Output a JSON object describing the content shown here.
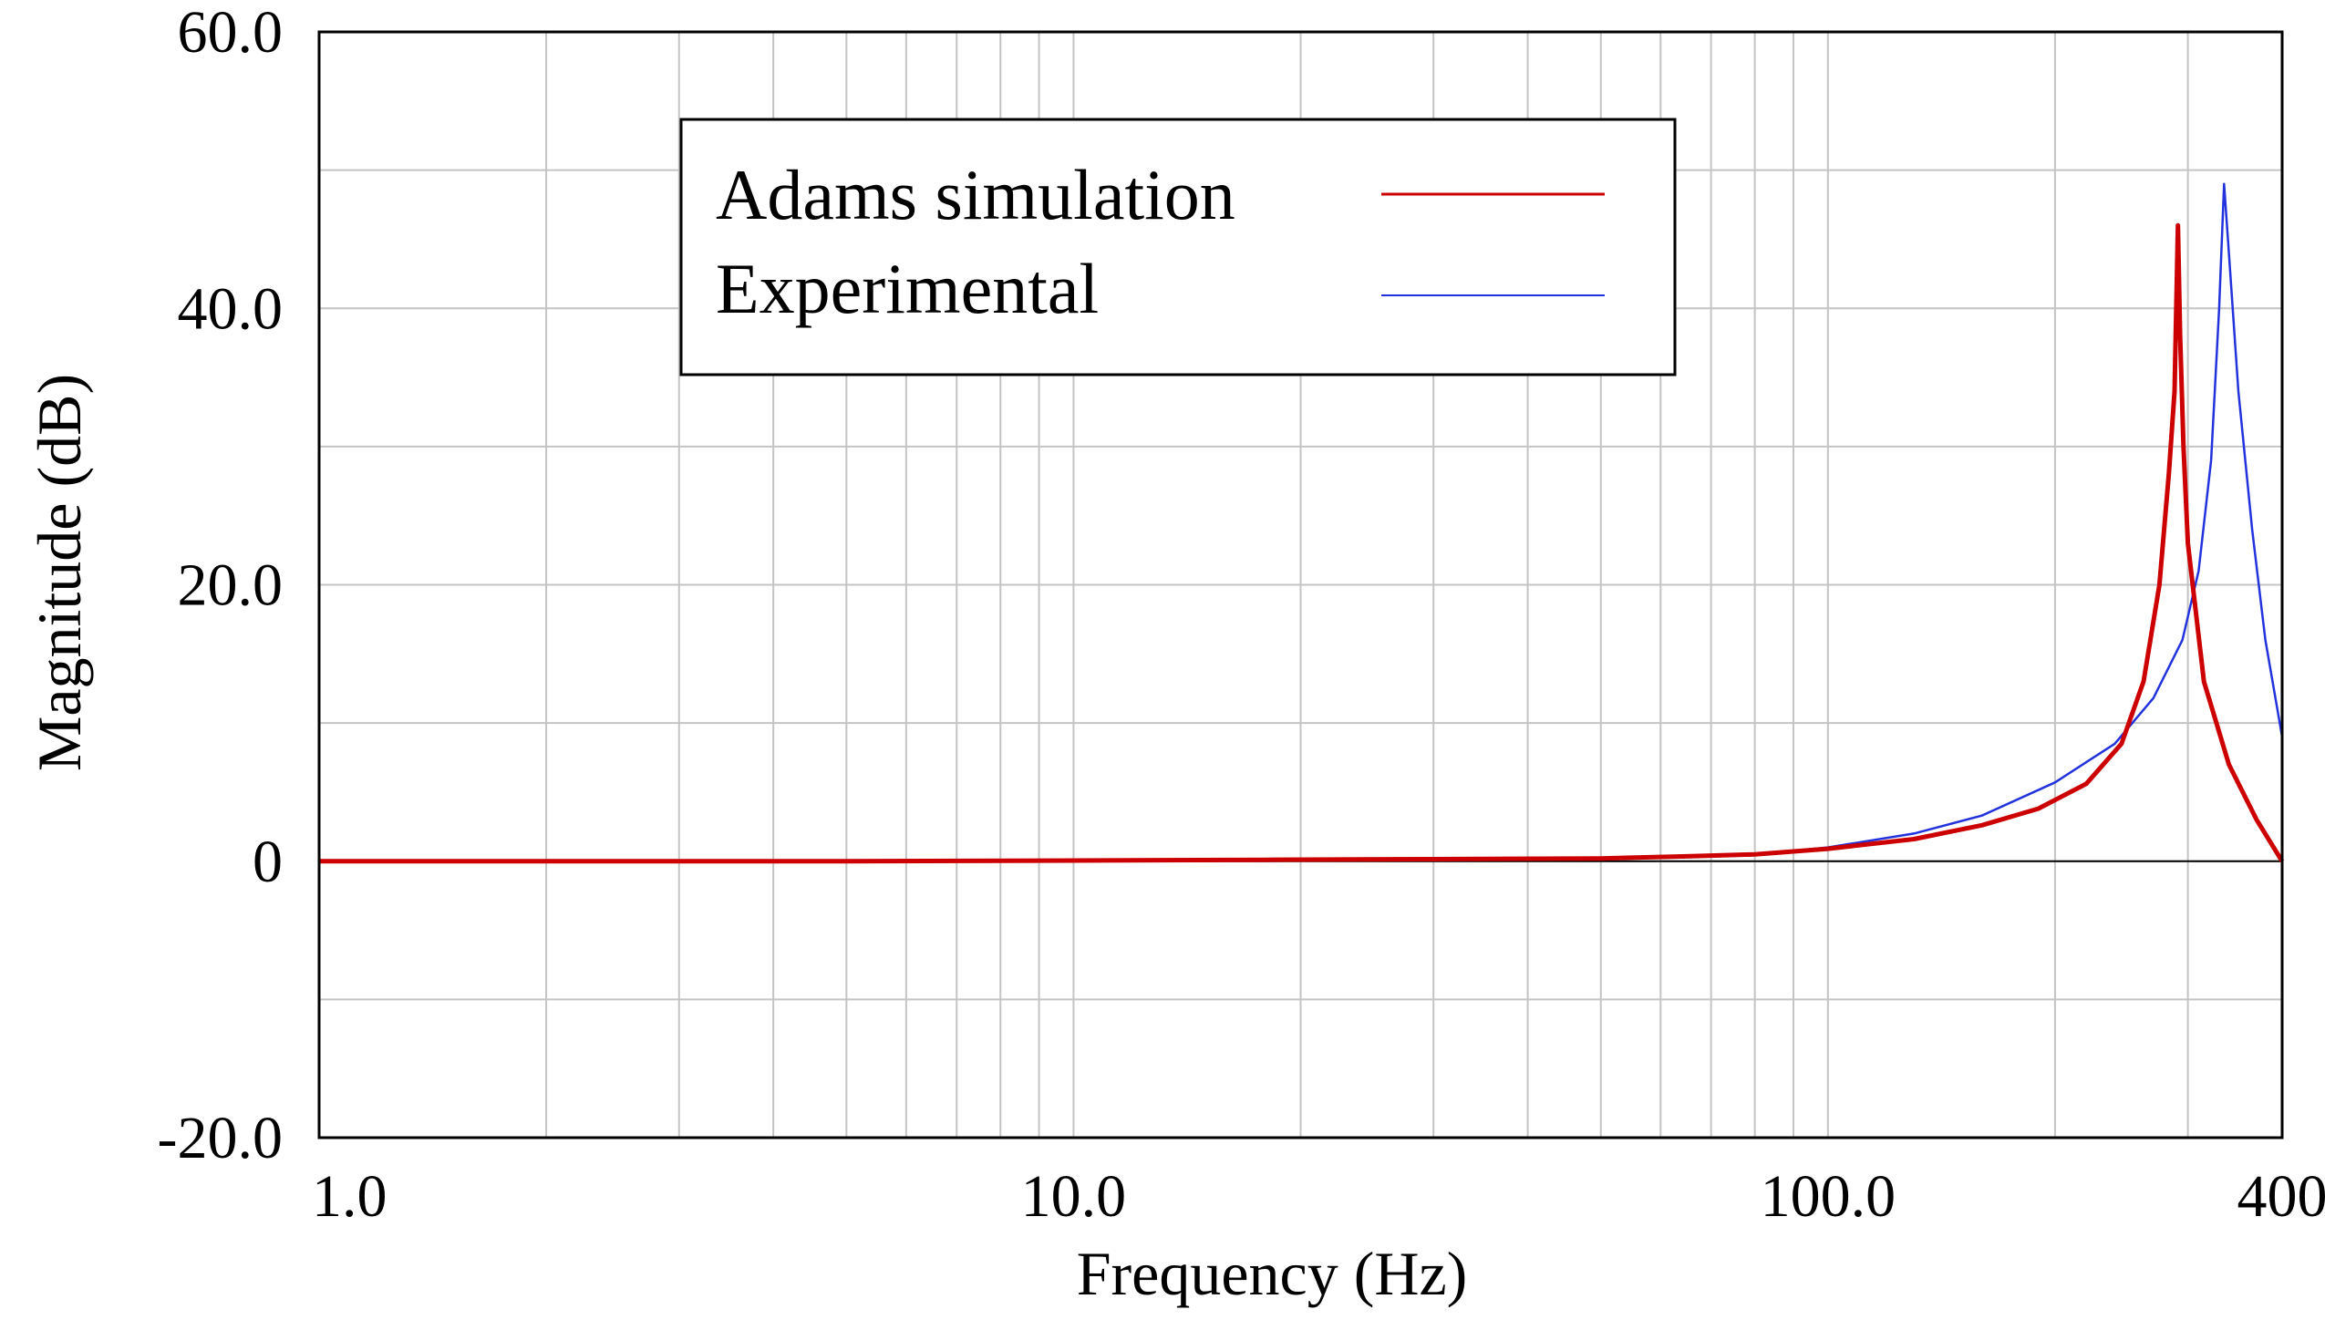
{
  "chart_data": {
    "type": "line",
    "title": "",
    "xlabel": "Frequency (Hz)",
    "ylabel": "Magnitude (dB)",
    "xscale": "log",
    "xlim": [
      1,
      400
    ],
    "ylim": [
      -20,
      60
    ],
    "grid": true,
    "x_ticks": [
      {
        "value": 1,
        "label": "1.0"
      },
      {
        "value": 10,
        "label": "10.0"
      },
      {
        "value": 100,
        "label": "100.0"
      },
      {
        "value": 400,
        "label": "400"
      }
    ],
    "y_ticks": [
      {
        "value": 60,
        "label": "60.0"
      },
      {
        "value": 40,
        "label": "40.0"
      },
      {
        "value": 20,
        "label": "20.0"
      },
      {
        "value": 0,
        "label": "0"
      },
      {
        "value": -20,
        "label": "-20.0"
      }
    ],
    "legend_position": "top-center",
    "series": [
      {
        "name": "Adams simulation",
        "color": "#cc0000",
        "points": [
          [
            1,
            0
          ],
          [
            2,
            0
          ],
          [
            5,
            0
          ],
          [
            10,
            0.05
          ],
          [
            18,
            0.1
          ],
          [
            30,
            0.15
          ],
          [
            50,
            0.2
          ],
          [
            65,
            0.35
          ],
          [
            80,
            0.5
          ],
          [
            100,
            0.9
          ],
          [
            130,
            1.6
          ],
          [
            160,
            2.6
          ],
          [
            190,
            3.8
          ],
          [
            220,
            5.6
          ],
          [
            245,
            8.5
          ],
          [
            262,
            13
          ],
          [
            275,
            20
          ],
          [
            283,
            28
          ],
          [
            288,
            34
          ],
          [
            291,
            46
          ],
          [
            293,
            38
          ],
          [
            296,
            30
          ],
          [
            300,
            23
          ],
          [
            315,
            13
          ],
          [
            340,
            7
          ],
          [
            370,
            3
          ],
          [
            400,
            0
          ]
        ]
      },
      {
        "name": "Experimental",
        "color": "#2233dd",
        "points": [
          [
            1,
            0
          ],
          [
            5,
            0
          ],
          [
            10,
            0.05
          ],
          [
            30,
            0.15
          ],
          [
            60,
            0.25
          ],
          [
            80,
            0.5
          ],
          [
            100,
            1
          ],
          [
            130,
            2
          ],
          [
            160,
            3.3
          ],
          [
            200,
            5.7
          ],
          [
            240,
            8.5
          ],
          [
            270,
            11.8
          ],
          [
            295,
            16
          ],
          [
            310,
            21
          ],
          [
            322,
            29
          ],
          [
            330,
            40
          ],
          [
            335,
            49
          ],
          [
            340,
            44
          ],
          [
            350,
            34
          ],
          [
            365,
            24
          ],
          [
            380,
            16
          ],
          [
            400,
            9
          ]
        ]
      }
    ]
  }
}
